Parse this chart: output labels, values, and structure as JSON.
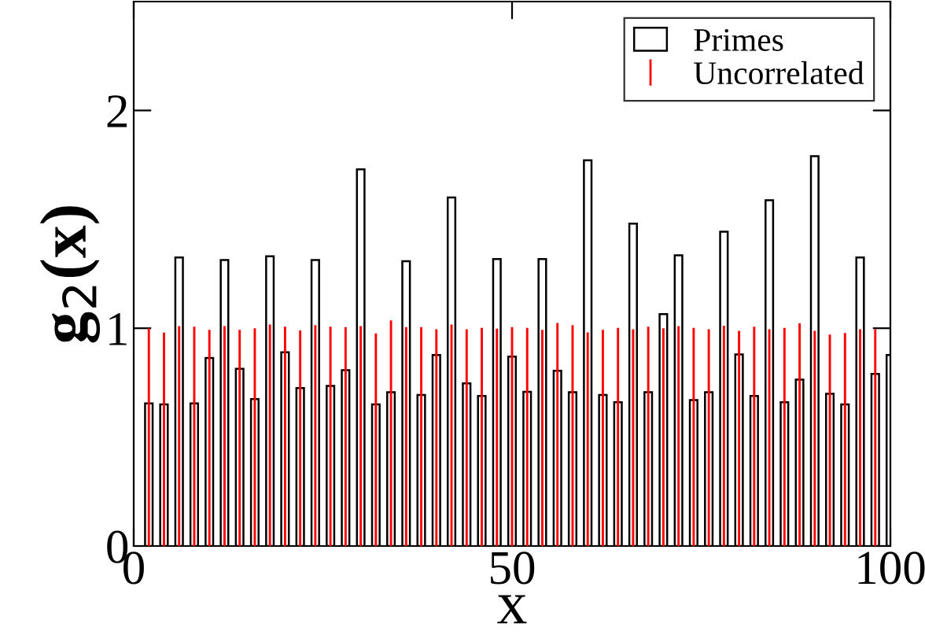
{
  "chart_data": {
    "type": "bar",
    "xlabel": "x",
    "ylabel": "g$_{2}$(x)",
    "x": [
      2,
      4,
      6,
      8,
      10,
      12,
      14,
      16,
      18,
      20,
      22,
      24,
      26,
      28,
      30,
      32,
      34,
      36,
      38,
      40,
      42,
      44,
      46,
      48,
      50,
      52,
      54,
      56,
      58,
      60,
      62,
      64,
      66,
      68,
      70,
      72,
      74,
      76,
      78,
      80,
      82,
      84,
      86,
      88,
      90,
      92,
      94,
      96,
      98,
      100
    ],
    "series": [
      {
        "name": "Primes",
        "color": "#000000",
        "values": [
          0.655,
          0.65,
          1.325,
          0.655,
          0.863,
          1.313,
          0.814,
          0.675,
          1.33,
          0.89,
          0.725,
          1.313,
          0.735,
          0.807,
          1.73,
          0.65,
          0.706,
          1.308,
          0.694,
          0.877,
          1.6,
          0.747,
          0.689,
          1.318,
          0.87,
          0.708,
          1.318,
          0.805,
          0.706,
          1.771,
          0.694,
          0.66,
          1.48,
          0.706,
          1.065,
          1.335,
          0.67,
          0.706,
          1.443,
          0.88,
          0.689,
          1.588,
          0.66,
          0.764,
          1.79,
          0.699,
          0.65,
          1.325,
          0.79,
          0.877
        ]
      },
      {
        "name": "Uncorrelated",
        "color": "#ff0000",
        "values": [
          1.0,
          0.98,
          1.01,
          1.007,
          0.993,
          1.01,
          0.993,
          1.0,
          1.017,
          1.007,
          0.99,
          1.014,
          1.007,
          1.005,
          1.01,
          0.976,
          1.036,
          1.005,
          1.005,
          0.995,
          1.017,
          0.995,
          1.002,
          0.998,
          1.005,
          1.002,
          0.993,
          1.024,
          1.014,
          0.981,
          0.993,
          1.002,
          0.995,
          1.007,
          1.0,
          1.01,
          1.002,
          0.995,
          1.012,
          0.988,
          1.007,
          0.995,
          1.002,
          1.022,
          0.988,
          0.971,
          0.978,
          0.995,
          0.995,
          null
        ]
      }
    ],
    "xlim": [
      0,
      100
    ],
    "xticks": [
      0,
      50,
      100
    ],
    "ylim": [
      0,
      2.5
    ],
    "yticks": [
      0,
      1,
      2
    ],
    "legend": "top right",
    "grid": false
  }
}
